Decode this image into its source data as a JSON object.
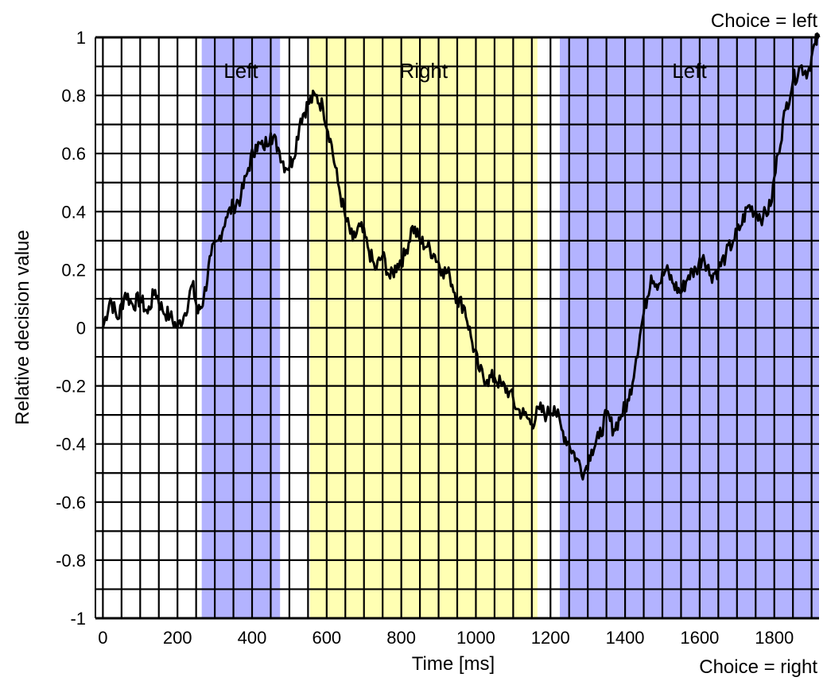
{
  "chart_data": {
    "type": "line",
    "title": "",
    "xlabel": "Time [ms]",
    "ylabel": "Relative decision value",
    "xlim": [
      -20,
      1920
    ],
    "ylim": [
      -1,
      1
    ],
    "grid": true,
    "x_ticks": [
      0,
      200,
      400,
      600,
      800,
      1000,
      1200,
      1400,
      1600,
      1800
    ],
    "y_ticks": [
      -1,
      -0.8,
      -0.6,
      -0.4,
      -0.2,
      0,
      0.2,
      0.4,
      0.6,
      0.8,
      1
    ],
    "x_tick_labels": [
      "0",
      "200",
      "400",
      "600",
      "800",
      "1000",
      "1200",
      "1400",
      "1600",
      "1800"
    ],
    "y_tick_labels": [
      "-1",
      "-0.8",
      "-0.6",
      "-0.4",
      "-0.2",
      "0",
      "0.2",
      "0.4",
      "0.6",
      "0.8",
      "1"
    ],
    "annotations": {
      "top_right": "Choice = left",
      "bottom_right": "Choice = right"
    },
    "regions": [
      {
        "label": "Left",
        "x_start": 265,
        "x_end": 475,
        "color": "#b3b3ff"
      },
      {
        "label": "Right",
        "x_start": 555,
        "x_end": 1165,
        "color": "#ffffb3"
      },
      {
        "label": "Left",
        "x_start": 1225,
        "x_end": 1920,
        "color": "#b3b3ff"
      }
    ],
    "series": [
      {
        "color": "#000000",
        "x": [
          0,
          20,
          40,
          60,
          80,
          100,
          120,
          140,
          160,
          180,
          200,
          220,
          240,
          255,
          270,
          290,
          310,
          330,
          350,
          370,
          390,
          410,
          430,
          450,
          470,
          490,
          510,
          530,
          550,
          570,
          590,
          610,
          630,
          650,
          670,
          690,
          710,
          730,
          750,
          770,
          790,
          810,
          830,
          850,
          870,
          890,
          910,
          930,
          950,
          970,
          990,
          1010,
          1030,
          1050,
          1070,
          1090,
          1110,
          1130,
          1150,
          1170,
          1190,
          1210,
          1230,
          1250,
          1270,
          1290,
          1310,
          1330,
          1350,
          1370,
          1390,
          1410,
          1430,
          1450,
          1470,
          1490,
          1510,
          1530,
          1550,
          1570,
          1590,
          1610,
          1630,
          1650,
          1670,
          1690,
          1710,
          1730,
          1750,
          1770,
          1790,
          1810,
          1830,
          1850,
          1870,
          1890,
          1910,
          1920
        ],
        "y": [
          0.0,
          0.1,
          0.03,
          0.12,
          0.08,
          0.1,
          0.05,
          0.13,
          0.06,
          0.04,
          0.0,
          0.05,
          0.15,
          0.05,
          0.1,
          0.25,
          0.3,
          0.38,
          0.42,
          0.45,
          0.55,
          0.63,
          0.62,
          0.67,
          0.62,
          0.55,
          0.58,
          0.72,
          0.77,
          0.8,
          0.76,
          0.65,
          0.5,
          0.38,
          0.3,
          0.35,
          0.28,
          0.2,
          0.25,
          0.17,
          0.22,
          0.25,
          0.35,
          0.3,
          0.28,
          0.25,
          0.2,
          0.18,
          0.1,
          0.07,
          -0.05,
          -0.15,
          -0.18,
          -0.17,
          -0.2,
          -0.22,
          -0.28,
          -0.3,
          -0.33,
          -0.28,
          -0.3,
          -0.27,
          -0.35,
          -0.4,
          -0.45,
          -0.5,
          -0.42,
          -0.38,
          -0.3,
          -0.35,
          -0.3,
          -0.25,
          -0.1,
          0.05,
          0.18,
          0.15,
          0.2,
          0.15,
          0.12,
          0.18,
          0.2,
          0.25,
          0.18,
          0.2,
          0.25,
          0.3,
          0.35,
          0.42,
          0.4,
          0.38,
          0.42,
          0.6,
          0.75,
          0.85,
          0.9,
          0.88,
          0.98,
          1.0
        ]
      }
    ]
  }
}
